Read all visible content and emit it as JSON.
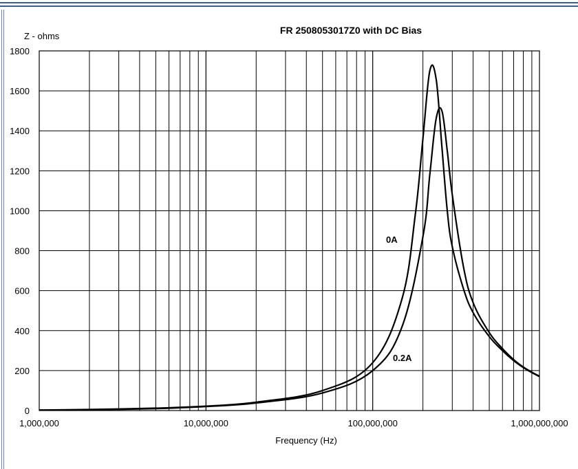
{
  "chart_data": {
    "type": "line",
    "title": "FR 2508053017Z0 with DC Bias",
    "xlabel": "Frequency (Hz)",
    "ylabel": "Z - ohms",
    "x_scale": "log",
    "xlim": [
      1000000,
      1000000000
    ],
    "ylim": [
      0,
      1800
    ],
    "grid": true,
    "x_tick_labels": [
      "1,000,000",
      "10,000,000",
      "100,000,000",
      "1,000,000,000"
    ],
    "y_tick_labels": [
      "0",
      "200",
      "400",
      "600",
      "800",
      "1000",
      "1200",
      "1400",
      "1600",
      "1800"
    ],
    "series": [
      {
        "name": "0A",
        "x": [
          1000000,
          2000000,
          5000000,
          10000000,
          20000000,
          50000000,
          100000000,
          150000000,
          180000000,
          200000000,
          220000000,
          240000000,
          260000000,
          280000000,
          300000000,
          350000000,
          400000000,
          500000000,
          600000000,
          700000000,
          800000000,
          900000000,
          1000000000
        ],
        "y": [
          2,
          5,
          12,
          22,
          42,
          100,
          240,
          560,
          980,
          1360,
          1700,
          1660,
          1320,
          1000,
          820,
          610,
          490,
          370,
          300,
          250,
          215,
          190,
          170
        ]
      },
      {
        "name": "0.2A",
        "x": [
          1000000,
          2000000,
          5000000,
          10000000,
          20000000,
          50000000,
          100000000,
          150000000,
          200000000,
          220000000,
          240000000,
          260000000,
          280000000,
          300000000,
          350000000,
          400000000,
          500000000,
          600000000,
          700000000,
          800000000,
          900000000,
          1000000000
        ],
        "y": [
          2,
          4,
          10,
          20,
          38,
          88,
          200,
          420,
          870,
          1180,
          1460,
          1500,
          1300,
          1080,
          720,
          540,
          390,
          310,
          255,
          218,
          192,
          172
        ]
      }
    ],
    "annotations": [
      {
        "text": "0A",
        "series": "0A"
      },
      {
        "text": "0.2A",
        "series": "0.2A"
      }
    ]
  }
}
